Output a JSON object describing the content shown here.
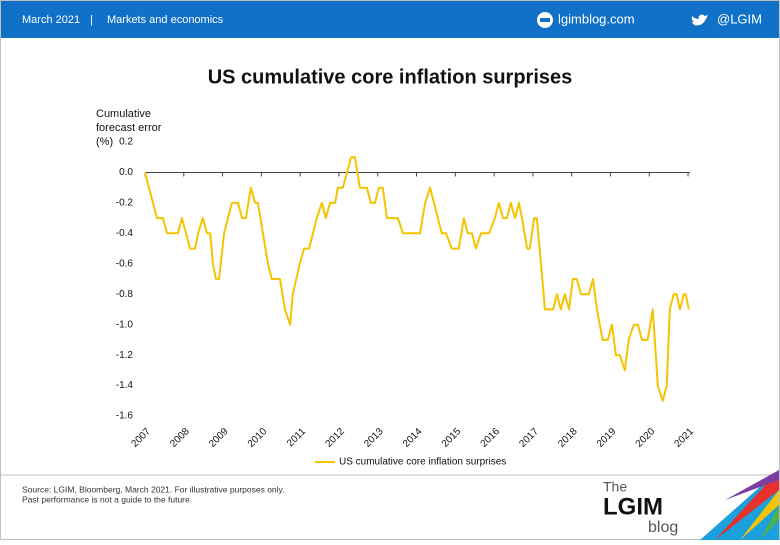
{
  "header": {
    "date": "March 2021",
    "separator": "|",
    "section": "Markets and economics",
    "site": "lgimblog.com",
    "twitter": "@LGIM"
  },
  "chart_data": {
    "type": "line",
    "title": "US cumulative core inflation surprises",
    "ylabel": [
      "Cumulative",
      "forecast error",
      "(%)"
    ],
    "x": [
      2007.0,
      2007.31,
      2007.46,
      2007.57,
      2007.85,
      2007.95,
      2008.06,
      2008.16,
      2008.29,
      2008.37,
      2008.49,
      2008.6,
      2008.68,
      2008.75,
      2008.83,
      2008.91,
      2009.04,
      2009.24,
      2009.4,
      2009.5,
      2009.6,
      2009.73,
      2009.84,
      2009.91,
      2010.04,
      2010.17,
      2010.27,
      2010.48,
      2010.61,
      2010.74,
      2010.81,
      2010.99,
      2011.1,
      2011.23,
      2011.33,
      2011.43,
      2011.56,
      2011.66,
      2011.77,
      2011.9,
      2011.97,
      2012.1,
      2012.21,
      2012.31,
      2012.41,
      2012.54,
      2012.72,
      2012.82,
      2012.93,
      2013.03,
      2013.13,
      2013.24,
      2013.52,
      2013.65,
      2014.09,
      2014.22,
      2014.35,
      2014.45,
      2014.55,
      2014.65,
      2014.76,
      2014.91,
      2015.09,
      2015.22,
      2015.32,
      2015.43,
      2015.53,
      2015.66,
      2015.87,
      2016.02,
      2016.12,
      2016.23,
      2016.33,
      2016.43,
      2016.54,
      2016.64,
      2016.72,
      2016.85,
      2016.92,
      2017.03,
      2017.1,
      2017.21,
      2017.31,
      2017.52,
      2017.62,
      2017.72,
      2017.82,
      2017.93,
      2018.03,
      2018.13,
      2018.24,
      2018.44,
      2018.55,
      2018.65,
      2018.8,
      2018.93,
      2019.04,
      2019.14,
      2019.24,
      2019.37,
      2019.47,
      2019.6,
      2019.71,
      2019.81,
      2019.96,
      2020.09,
      2020.22,
      2020.35,
      2020.45,
      2020.53,
      2020.63,
      2020.71,
      2020.79,
      2020.89,
      2020.94,
      2021.02
    ],
    "series": [
      {
        "name": "US cumulative core inflation surprises",
        "color": "#f5c400",
        "values": [
          0.0,
          -0.3,
          -0.3,
          -0.4,
          -0.4,
          -0.3,
          -0.4,
          -0.5,
          -0.5,
          -0.4,
          -0.3,
          -0.4,
          -0.4,
          -0.6,
          -0.7,
          -0.7,
          -0.4,
          -0.2,
          -0.2,
          -0.3,
          -0.3,
          -0.1,
          -0.2,
          -0.2,
          -0.4,
          -0.6,
          -0.7,
          -0.7,
          -0.9,
          -1.0,
          -0.8,
          -0.6,
          -0.5,
          -0.5,
          -0.4,
          -0.3,
          -0.2,
          -0.3,
          -0.2,
          -0.2,
          -0.1,
          -0.1,
          0.0,
          0.1,
          0.1,
          -0.1,
          -0.1,
          -0.2,
          -0.2,
          -0.1,
          -0.1,
          -0.3,
          -0.3,
          -0.4,
          -0.4,
          -0.2,
          -0.1,
          -0.2,
          -0.3,
          -0.4,
          -0.4,
          -0.5,
          -0.5,
          -0.3,
          -0.4,
          -0.4,
          -0.5,
          -0.4,
          -0.4,
          -0.3,
          -0.2,
          -0.3,
          -0.3,
          -0.2,
          -0.3,
          -0.2,
          -0.3,
          -0.5,
          -0.5,
          -0.3,
          -0.3,
          -0.6,
          -0.9,
          -0.9,
          -0.8,
          -0.9,
          -0.8,
          -0.9,
          -0.7,
          -0.7,
          -0.8,
          -0.8,
          -0.7,
          -0.9,
          -1.1,
          -1.1,
          -1.0,
          -1.2,
          -1.2,
          -1.3,
          -1.1,
          -1.0,
          -1.0,
          -1.1,
          -1.1,
          -0.9,
          -1.4,
          -1.5,
          -1.4,
          -0.9,
          -0.8,
          -0.8,
          -0.9,
          -0.8,
          -0.8,
          -0.9
        ]
      }
    ],
    "xlim": [
      2007,
      2021.05
    ],
    "xticks": [
      2007,
      2008,
      2009,
      2010,
      2011,
      2012,
      2013,
      2014,
      2015,
      2016,
      2017,
      2018,
      2019,
      2020,
      2021
    ],
    "ylim": [
      -1.6,
      0.2
    ],
    "yticks": [
      0.2,
      {
        "value": 0,
        "label": "0.0"
      },
      -0.2,
      -0.4,
      -0.6,
      -0.8,
      {
        "value": -1,
        "label": "-1.0"
      },
      -1.2,
      -1.4,
      -1.6
    ],
    "legend": "bottom"
  },
  "footer": {
    "source": [
      "Source: LGIM, Bloomberg, March 2021. For illustrative purposes only.",
      "Past performance is not a guide to the future."
    ],
    "logo": {
      "top": "The",
      "middle": "LGIM",
      "bottom": "blog"
    }
  }
}
